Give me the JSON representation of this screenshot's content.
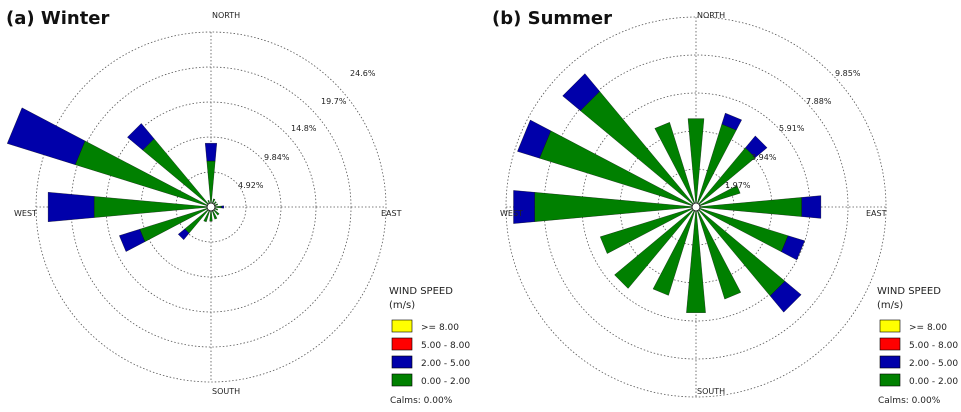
{
  "legend": {
    "title_line1": "WIND SPEED",
    "title_line2": "(m/s)",
    "bins": [
      {
        "label": ">= 8.00",
        "color": "#ffff00"
      },
      {
        "label": "5.00 - 8.00",
        "color": "#ff0000"
      },
      {
        "label": "2.00 - 5.00",
        "color": "#0000aa"
      },
      {
        "label": "0.00 - 2.00",
        "color": "#008000"
      }
    ],
    "calms": "Calms: 0.00%"
  },
  "chart_data": [
    {
      "type": "windrose",
      "title": "(a) Winter",
      "compass": {
        "north": "NORTH",
        "south": "SOUTH",
        "east": "EAST",
        "west": "WEST"
      },
      "ring_labels": [
        "4.92%",
        "9.84%",
        "14.8%",
        "19.7%",
        "24.6%"
      ],
      "ring_values": [
        4.92,
        9.84,
        14.8,
        19.7,
        24.6
      ],
      "directions_deg": [
        0,
        22.5,
        45,
        67.5,
        90,
        112.5,
        135,
        157.5,
        180,
        202.5,
        225,
        247.5,
        270,
        292.5,
        315,
        337.5
      ],
      "series": [
        {
          "name": "0.00 - 2.00",
          "color": "#008000",
          "values": [
            6.5,
            1.2,
            1.0,
            1.0,
            1.5,
            1.0,
            1.5,
            1.8,
            2.0,
            2.2,
            4.8,
            10.5,
            16.5,
            20.0,
            12.5,
            1.0
          ]
        },
        {
          "name": "2.00 - 5.00",
          "color": "#0000aa",
          "values": [
            2.5,
            0,
            0,
            0,
            0.3,
            0,
            0,
            0,
            0,
            0,
            1.2,
            3.0,
            6.5,
            10.0,
            2.8,
            0
          ]
        }
      ]
    },
    {
      "type": "windrose",
      "title": "(b) Summer",
      "compass": {
        "north": "NORTH",
        "south": "SOUTH",
        "east": "EAST",
        "west": "WEST"
      },
      "ring_labels": [
        "1.97%",
        "3.94%",
        "5.91%",
        "7.88%",
        "9.85%"
      ],
      "ring_values": [
        1.97,
        3.94,
        5.91,
        7.88,
        9.85
      ],
      "directions_deg": [
        0,
        22.5,
        45,
        67.5,
        90,
        112.5,
        135,
        157.5,
        180,
        202.5,
        225,
        247.5,
        270,
        292.5,
        315,
        337.5
      ],
      "series": [
        {
          "name": "0.00 - 2.00",
          "color": "#008000",
          "values": [
            4.6,
            4.5,
            4.0,
            2.4,
            5.5,
            5.0,
            6.0,
            5.0,
            5.5,
            4.8,
            5.5,
            5.2,
            8.4,
            8.5,
            7.8,
            4.6
          ]
        },
        {
          "name": "2.00 - 5.00",
          "color": "#0000aa",
          "values": [
            0,
            0.6,
            0.8,
            0,
            1.0,
            0.9,
            1.1,
            0,
            0,
            0,
            0,
            0,
            1.1,
            1.2,
            1.2,
            0
          ]
        }
      ]
    }
  ]
}
